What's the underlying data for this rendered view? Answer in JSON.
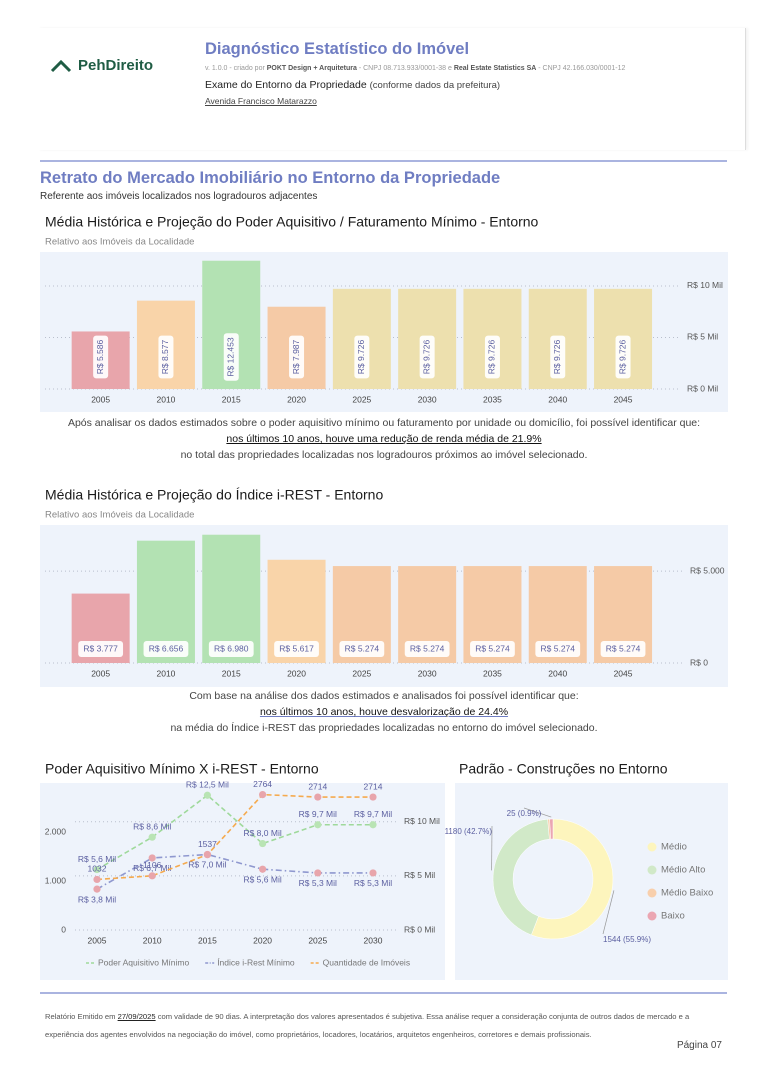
{
  "header": {
    "logo": "PehDireito",
    "title": "Diagnóstico Estatístico do Imóvel",
    "meta": [
      "v. 1.0.0 - criado por ",
      "POKT Design + Arquitetura",
      " - CNPJ 08.713.933/0001-38 e ",
      "Real Estate Statistics SA",
      " - CNPJ 42.166.030/0001-12"
    ],
    "exam": "Exame do Entorno da Propriedade",
    "exam_note": "(conforme dados da prefeitura)",
    "address": "Avenida Francisco Matarazzo"
  },
  "section": {
    "title": "Retrato do Mercado Imobiliário no Entorno da Propriedade",
    "subtitle": "Referente aos imóveis localizados nos logradouros adjacentes"
  },
  "chart_data": [
    {
      "type": "bar",
      "title": "Média Histórica e Projeção do Poder Aquisitivo / Faturamento Mínimo - Entorno",
      "subtitle": "Relativo aos Imóveis da Localidade",
      "categories": [
        "2005",
        "2010",
        "2015",
        "2020",
        "2025",
        "2030",
        "2035",
        "2040",
        "2045"
      ],
      "values": [
        5586,
        8577,
        12453,
        7987,
        9726,
        9726,
        9726,
        9726,
        9726
      ],
      "value_labels": [
        "R$ 5.586",
        "R$ 8.577",
        "R$ 12.453",
        "R$ 7.987",
        "R$ 9.726",
        "R$ 9.726",
        "R$ 9.726",
        "R$ 9.726",
        "R$ 9.726"
      ],
      "colors": [
        "#e8a5ab",
        "#f9d4a9",
        "#b3e2b3",
        "#f5caa6",
        "#ede0ae",
        "#ede0ae",
        "#ede0ae",
        "#ede0ae",
        "#ede0ae"
      ],
      "ylim": [
        0,
        13300
      ],
      "yticks": [
        {
          "value": 0,
          "label": "R$ 0 Mil"
        },
        {
          "value": 5000,
          "label": "R$ 5 Mil"
        },
        {
          "value": 10000,
          "label": "R$ 10 Mil"
        }
      ],
      "grid": true,
      "label_orientation": "vertical"
    },
    {
      "type": "bar",
      "title": "Média Histórica e Projeção do Índice i-REST - Entorno",
      "subtitle": "Relativo aos Imóveis da Localidade",
      "categories": [
        "2005",
        "2010",
        "2015",
        "2020",
        "2025",
        "2030",
        "2035",
        "2040",
        "2045"
      ],
      "values": [
        3777,
        6656,
        6980,
        5617,
        5274,
        5274,
        5274,
        5274,
        5274
      ],
      "value_labels": [
        "R$ 3.777",
        "R$ 6.656",
        "R$ 6.980",
        "R$ 5.617",
        "R$ 5.274",
        "R$ 5.274",
        "R$ 5.274",
        "R$ 5.274",
        "R$ 5.274"
      ],
      "colors": [
        "#e8a5ab",
        "#b3e2b3",
        "#b3e2b3",
        "#f9d4a9",
        "#f5caa6",
        "#f5caa6",
        "#f5caa6",
        "#f5caa6",
        "#f5caa6"
      ],
      "ylim": [
        0,
        7400
      ],
      "yticks": [
        {
          "value": 0,
          "label": "R$ 0"
        },
        {
          "value": 5000,
          "label": "R$ 5.000"
        }
      ],
      "grid": true,
      "label_orientation": "horizontal"
    },
    {
      "type": "line",
      "title": "Poder Aquisitivo Mínimo X i-REST - Entorno",
      "categories": [
        "2005",
        "2010",
        "2015",
        "2020",
        "2025",
        "2030"
      ],
      "series": [
        {
          "name": "Poder Aquisitivo Mínimo",
          "color": "#9fd99b",
          "style": "dashed",
          "marker_color": "#b9e4b4",
          "axis": "y2",
          "values": [
            5586,
            8577,
            12453,
            7987,
            9726,
            9726
          ],
          "value_labels": [
            "R$ 5,6 Mil",
            "R$ 8,6 Mil",
            "R$ 12,5 Mil",
            "R$ 8,0 Mil",
            "R$ 9,7 Mil",
            "R$ 9,7 Mil"
          ]
        },
        {
          "name": "Índice i-Rest Mínimo",
          "color": "#8f98cf",
          "style": "dashdot",
          "marker_color": "#e8a5ab",
          "axis": "y2",
          "values": [
            3777,
            6656,
            6980,
            5617,
            5274,
            5274
          ],
          "value_labels": [
            "R$ 3,8 Mil",
            "R$ 6,7 Mil",
            "R$ 7,0 Mil",
            "R$ 5,6 Mil",
            "R$ 5,3 Mil",
            "R$ 5,3 Mil"
          ]
        },
        {
          "name": "Quantidade de Imóveis",
          "color": "#f5aa4e",
          "style": "dashed",
          "marker_color": "#e8a5ab",
          "values": [
            1032,
            1106,
            1537,
            2764,
            2714,
            2714
          ]
        }
      ],
      "ylim": [
        0,
        2960
      ],
      "yticks": [
        0,
        {
          "value": 1000,
          "label": "1.000"
        },
        {
          "value": 2000,
          "label": "2.000"
        }
      ],
      "y2lim": [
        0,
        13400
      ],
      "y2ticks": [
        {
          "value": 0,
          "label": "R$ 0 Mil"
        },
        {
          "value": 5000,
          "label": "R$ 5 Mil"
        },
        {
          "value": 10000,
          "label": "R$ 10 Mil"
        }
      ],
      "grid": true,
      "legend": "bottom"
    },
    {
      "type": "donut",
      "title": "Padrão - Construções no Entorno",
      "categories": [
        "Médio",
        "Médio Alto",
        "Médio Baixo",
        "Baixo"
      ],
      "values": [
        1544,
        1180,
        14,
        25
      ],
      "value_labels": [
        "1544 (55.9%)",
        "1180 (42.7%)",
        null,
        "25 (0.9%)"
      ],
      "colors": [
        "#fdf5bd",
        "#d1e9c8",
        "#f8cfac",
        "#eba6b2"
      ],
      "legend": "right"
    }
  ],
  "notes": [
    [
      "Após analisar os dados estimados sobre o poder aquisitivo mínimo ou faturamento por unidade ou domicílio, foi possível identificar que:",
      "nos últimos 10 anos, houve uma redução de renda média de 21.9%",
      "no total das propriedades localizadas nos logradouros próximos ao imóvel selecionado."
    ],
    [
      "Com base na análise dos dados estimados e analisados foi possível identificar que:",
      "nos últimos 10 anos, houve desvalorização de 24.4%",
      "na média do Índice i-REST das propriedades localizadas no entorno do imóvel selecionado."
    ]
  ],
  "footer": {
    "before": "Relatório Emitido em ",
    "date": "27/09/2025",
    "after": " com validade de 90 dias. A interpretação dos valores apresentados é subjetiva. Essa análise requer a consideração conjunta de outros dados de mercado e a experiência dos agentes envolvidos na negociação do imóvel, como proprietários, locadores, locatários, arquitetos engenheiros, corretores e demais profissionais.",
    "page": "Página 07"
  }
}
